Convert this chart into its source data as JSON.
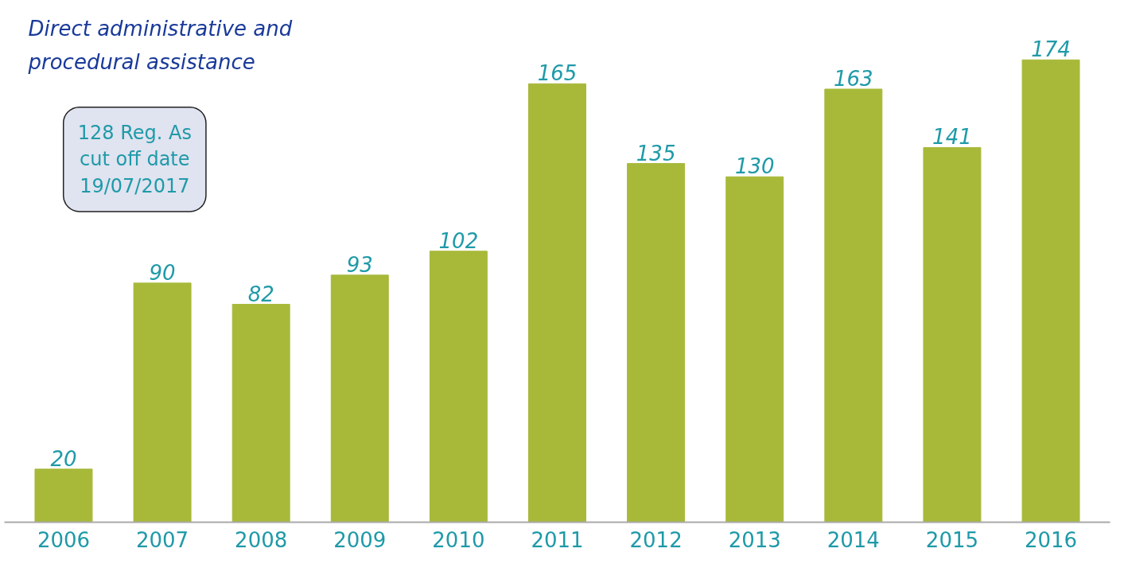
{
  "chart_data": {
    "type": "bar",
    "title": "Direct administrative and procedural assistance",
    "categories": [
      "2006",
      "2007",
      "2008",
      "2009",
      "2010",
      "2011",
      "2012",
      "2013",
      "2014",
      "2015",
      "2016"
    ],
    "values": [
      20,
      90,
      82,
      93,
      102,
      165,
      135,
      130,
      163,
      141,
      174
    ],
    "color": "#a8b93a",
    "data_labels": true,
    "grid": false,
    "annotations": [
      "128 Reg. As",
      "cut off date",
      "19/07/2017"
    ]
  }
}
